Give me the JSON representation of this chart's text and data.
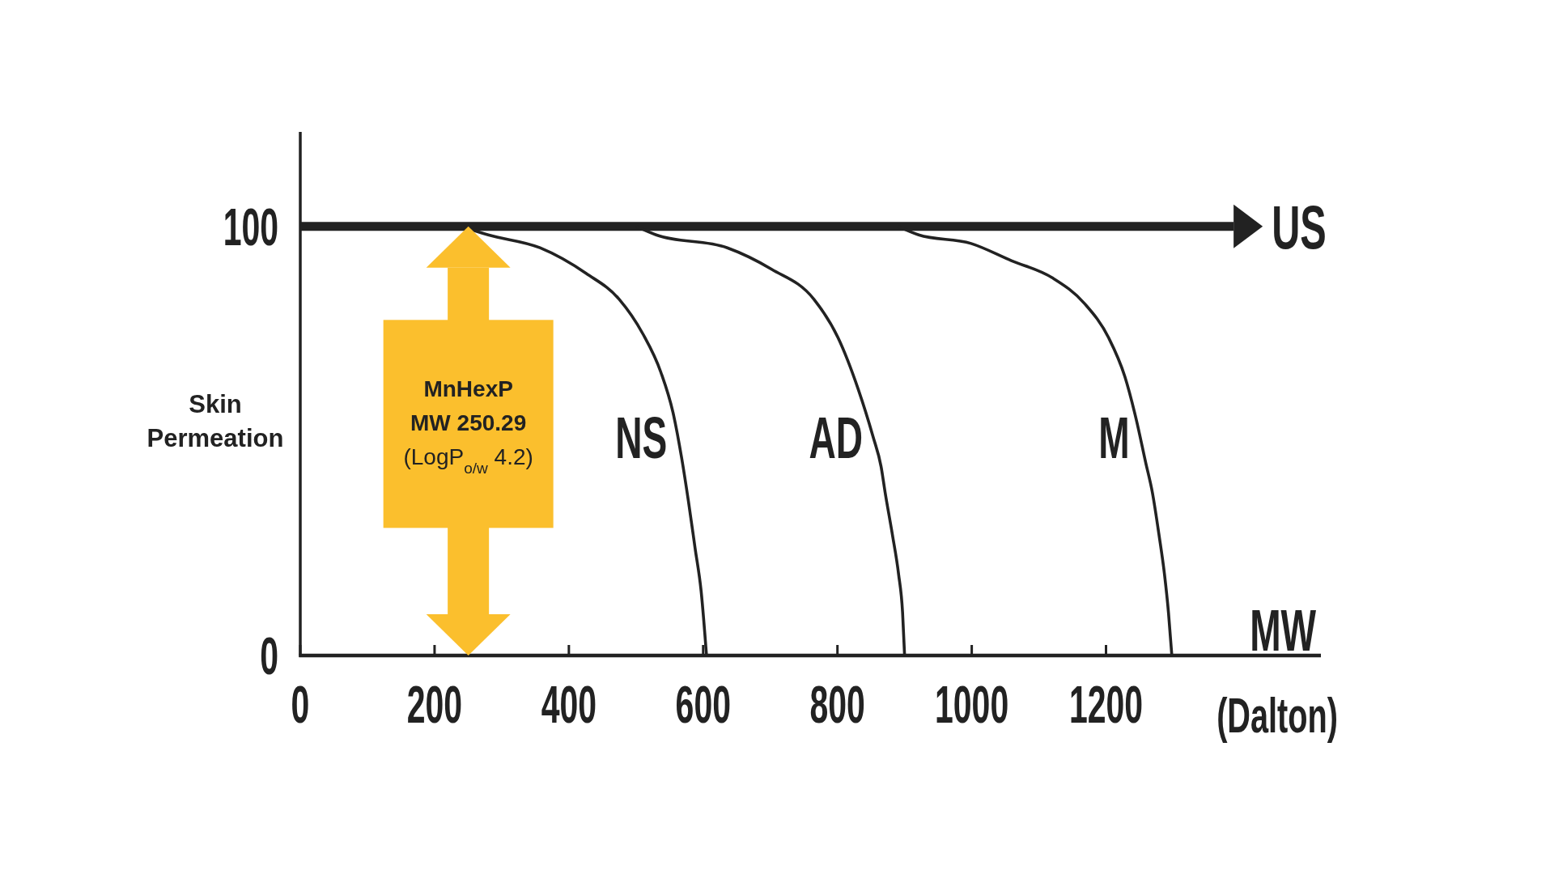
{
  "chart_data": {
    "type": "line",
    "xlabel": "MW",
    "ylabel": "Skin Permeation",
    "annotations": [
      "(Dalton)"
    ],
    "xlim": [
      0,
      1520
    ],
    "xticks": [
      0,
      200,
      400,
      600,
      800,
      1000,
      1200
    ],
    "ylim": [
      0,
      122
    ],
    "yticks": [
      0,
      100
    ],
    "series": [
      {
        "name": "US",
        "color": "#222222",
        "x": [
          0,
          1390
        ],
        "values": [
          100,
          100
        ]
      },
      {
        "name": "NS",
        "color": "#222222",
        "x": [
          240,
          280,
          357,
          426,
          475,
          510,
          537,
          556,
          568,
          578,
          588,
          597,
          605
        ],
        "values": [
          100,
          98,
          95,
          89,
          83,
          75,
          66,
          56,
          46,
          36,
          25,
          15,
          0
        ]
      },
      {
        "name": "AD",
        "color": "#222222",
        "x": [
          500,
          530,
          636,
          702,
          765,
          801,
          831,
          853,
          865,
          871,
          882,
          891,
          897,
          900
        ],
        "values": [
          100,
          98,
          95,
          90,
          83,
          74,
          62,
          51,
          44,
          38,
          28,
          19,
          10,
          0
        ]
      },
      {
        "name": "M",
        "color": "#222222",
        "x": [
          890,
          921,
          999,
          1059,
          1120,
          1168,
          1204,
          1228,
          1245,
          1259,
          1269,
          1279,
          1287,
          1293,
          1298
        ],
        "values": [
          100,
          98,
          96,
          92,
          88,
          82,
          74,
          65,
          55,
          45,
          38,
          28,
          19,
          10,
          0
        ]
      }
    ],
    "ref_lines": [
      {
        "axis": "x",
        "value": 250.29,
        "label": "MnHexP\nMW 250.29\n(LogP$_{o/w}$ 4.2)",
        "color": "#fbbf2d"
      }
    ]
  }
}
